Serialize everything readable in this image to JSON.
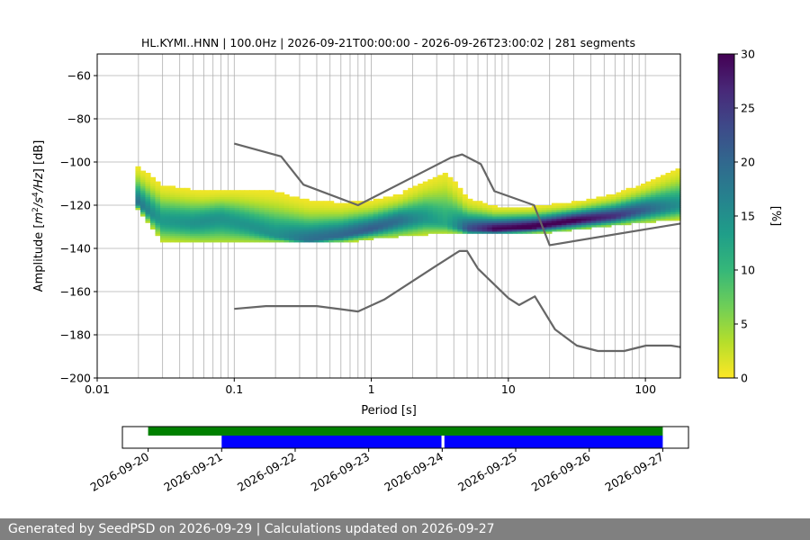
{
  "chart_data": [
    {
      "type": "heatmap",
      "title": "HL.KYMI..HNN | 100.0Hz | 2026-09-21T00:00:00 - 2026-09-26T23:00:02 | 281 segments",
      "xlabel": "Period [s]",
      "ylabel_parts": [
        "Amplitude [",
        "m",
        "2",
        "/",
        "s",
        "4",
        "/",
        "Hz",
        "] [dB]"
      ],
      "x_scale": "log",
      "xlim": [
        0.01,
        180
      ],
      "ylim": [
        -200,
        -50
      ],
      "x_ticks": [
        0.01,
        0.1,
        1,
        10,
        100
      ],
      "x_tick_labels": [
        "0.01",
        "0.1",
        "1",
        "10",
        "100"
      ],
      "y_ticks": [
        -200,
        -180,
        -160,
        -140,
        -120,
        -100,
        -80,
        -60
      ],
      "y_tick_labels": [
        "−200",
        "−180",
        "−160",
        "−140",
        "−120",
        "−100",
        "−80",
        "−60"
      ],
      "grid": true,
      "colorbar": {
        "label": "[%]",
        "range": [
          0,
          30
        ],
        "ticks": [
          0,
          5,
          10,
          15,
          20,
          25,
          30
        ],
        "tick_labels": [
          "0",
          "5",
          "10",
          "15",
          "20",
          "25",
          "30"
        ],
        "colormap": [
          "#fde725",
          "#b5de2b",
          "#6ece58",
          "#35b779",
          "#1f9e89",
          "#26828e",
          "#31688e",
          "#3e4989",
          "#482878",
          "#440154"
        ]
      },
      "density": {
        "period_range": [
          0.019,
          180
        ],
        "mode_curve": [
          {
            "x": 0.019,
            "y": -118
          },
          {
            "x": 0.025,
            "y": -124
          },
          {
            "x": 0.03,
            "y": -127
          },
          {
            "x": 0.05,
            "y": -128
          },
          {
            "x": 0.08,
            "y": -126
          },
          {
            "x": 0.12,
            "y": -129
          },
          {
            "x": 0.2,
            "y": -134
          },
          {
            "x": 0.35,
            "y": -136
          },
          {
            "x": 0.6,
            "y": -134
          },
          {
            "x": 1,
            "y": -131
          },
          {
            "x": 1.6,
            "y": -127
          },
          {
            "x": 2.5,
            "y": -126
          },
          {
            "x": 3.5,
            "y": -128
          },
          {
            "x": 5,
            "y": -131
          },
          {
            "x": 8,
            "y": -131
          },
          {
            "x": 15,
            "y": -130
          },
          {
            "x": 30,
            "y": -127
          },
          {
            "x": 60,
            "y": -125
          },
          {
            "x": 100,
            "y": -122
          },
          {
            "x": 180,
            "y": -120
          }
        ],
        "upper_curve": [
          {
            "x": 0.019,
            "y": -101
          },
          {
            "x": 0.03,
            "y": -110
          },
          {
            "x": 0.06,
            "y": -113
          },
          {
            "x": 0.1,
            "y": -112
          },
          {
            "x": 0.2,
            "y": -113
          },
          {
            "x": 0.35,
            "y": -118
          },
          {
            "x": 0.6,
            "y": -119
          },
          {
            "x": 1,
            "y": -118
          },
          {
            "x": 1.6,
            "y": -115
          },
          {
            "x": 2.5,
            "y": -108
          },
          {
            "x": 3.5,
            "y": -103
          },
          {
            "x": 5,
            "y": -117
          },
          {
            "x": 8,
            "y": -121
          },
          {
            "x": 15,
            "y": -121
          },
          {
            "x": 30,
            "y": -119
          },
          {
            "x": 60,
            "y": -115
          },
          {
            "x": 100,
            "y": -110
          },
          {
            "x": 180,
            "y": -102
          }
        ],
        "lower_curve": [
          {
            "x": 0.019,
            "y": -120
          },
          {
            "x": 0.03,
            "y": -136
          },
          {
            "x": 0.06,
            "y": -137
          },
          {
            "x": 0.1,
            "y": -137
          },
          {
            "x": 0.2,
            "y": -137
          },
          {
            "x": 0.35,
            "y": -137
          },
          {
            "x": 0.6,
            "y": -137
          },
          {
            "x": 1,
            "y": -135
          },
          {
            "x": 1.6,
            "y": -134
          },
          {
            "x": 2.5,
            "y": -133
          },
          {
            "x": 5,
            "y": -133
          },
          {
            "x": 10,
            "y": -133
          },
          {
            "x": 20,
            "y": -132
          },
          {
            "x": 40,
            "y": -130
          },
          {
            "x": 80,
            "y": -128
          },
          {
            "x": 180,
            "y": -126
          }
        ]
      },
      "series": [
        {
          "values": [
            {
              "x": 0.1,
              "y": -91.5
            },
            {
              "x": 0.22,
              "y": -97.4
            },
            {
              "x": 0.32,
              "y": -110.5
            },
            {
              "x": 0.8,
              "y": -120.0
            },
            {
              "x": 3.8,
              "y": -98.0
            },
            {
              "x": 4.6,
              "y": -96.5
            },
            {
              "x": 6.3,
              "y": -101.0
            },
            {
              "x": 7.9,
              "y": -113.5
            },
            {
              "x": 15.4,
              "y": -120.0
            },
            {
              "x": 20,
              "y": -138.5
            },
            {
              "x": 180,
              "y": -128.5
            }
          ],
          "color": "#666666"
        },
        {
          "values": [
            {
              "x": 0.1,
              "y": -168.0
            },
            {
              "x": 0.17,
              "y": -166.7
            },
            {
              "x": 0.4,
              "y": -166.7
            },
            {
              "x": 0.8,
              "y": -169.2
            },
            {
              "x": 1.24,
              "y": -163.7
            },
            {
              "x": 2.9,
              "y": -148.5
            },
            {
              "x": 4.4,
              "y": -141.2
            },
            {
              "x": 5.0,
              "y": -141.2
            },
            {
              "x": 6.0,
              "y": -149.4
            },
            {
              "x": 10,
              "y": -163.0
            },
            {
              "x": 12,
              "y": -166.2
            },
            {
              "x": 15.6,
              "y": -162.2
            },
            {
              "x": 21.9,
              "y": -177.5
            },
            {
              "x": 31.6,
              "y": -185.0
            },
            {
              "x": 45,
              "y": -187.5
            },
            {
              "x": 70,
              "y": -187.5
            },
            {
              "x": 101,
              "y": -185.0
            },
            {
              "x": 154,
              "y": -185.0
            },
            {
              "x": 180,
              "y": -185.7
            }
          ],
          "color": "#666666"
        }
      ]
    },
    {
      "type": "timeline",
      "x_tick_labels": [
        "2026-09-20",
        "2026-09-21",
        "2026-09-22",
        "2026-09-23",
        "2026-09-24",
        "2026-09-25",
        "2026-09-26",
        "2026-09-27"
      ],
      "range_days": [
        -0.35,
        7.35
      ],
      "bars": [
        {
          "start_day": 0.0,
          "end_day": 7.0,
          "color": "#008000",
          "row": "upper"
        },
        {
          "start_day": 1.0,
          "end_day": 3.99,
          "color": "#0000ff",
          "row": "lower"
        },
        {
          "start_day": 4.03,
          "end_day": 7.0,
          "color": "#0000ff",
          "row": "lower"
        }
      ]
    }
  ],
  "footer": {
    "text": "Generated by SeedPSD on 2026-09-29 | Calculations updated on 2026-09-27"
  }
}
